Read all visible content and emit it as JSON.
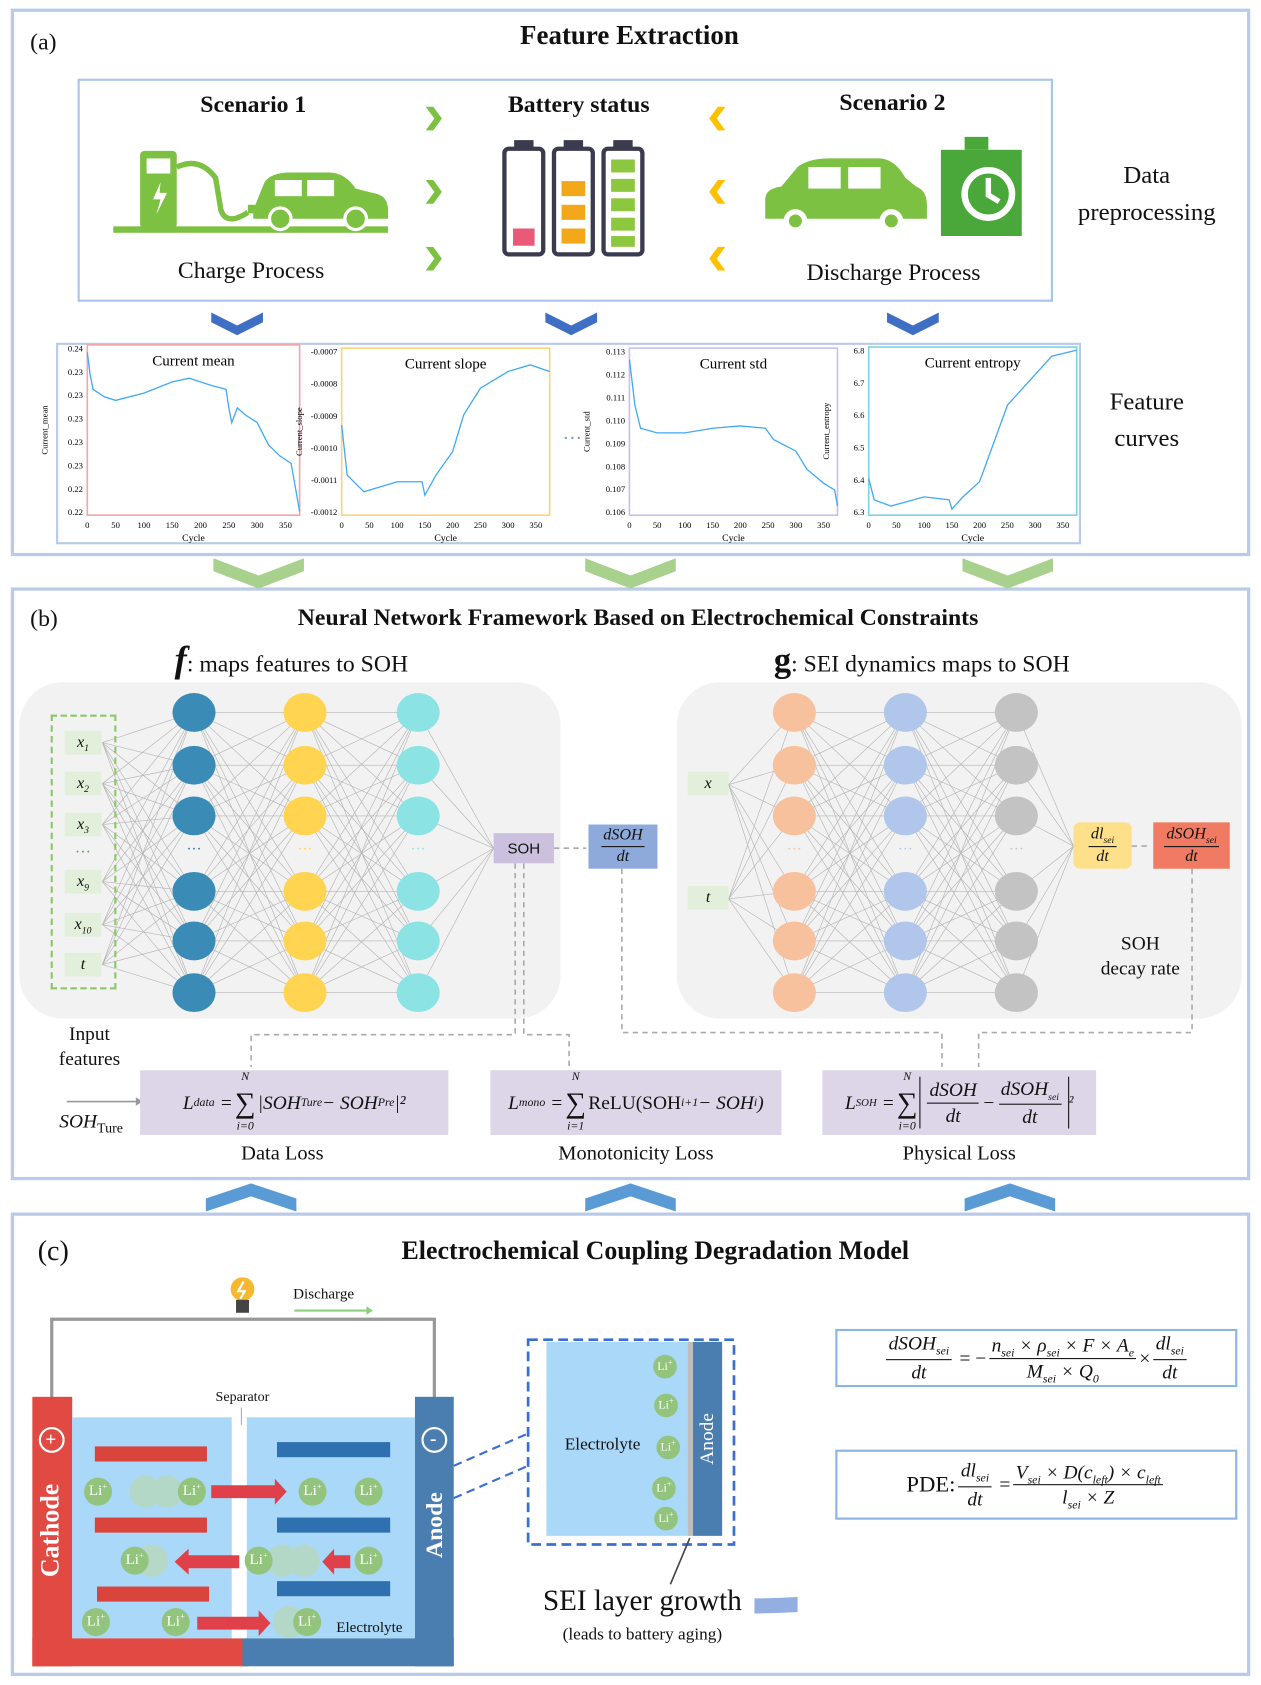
{
  "panel_a": {
    "label": "(a)",
    "title": "Feature Extraction",
    "scenario1": {
      "title": "Scenario 1",
      "caption": "Charge Process",
      "icon": "ev-charging-station-icon"
    },
    "battery": {
      "title": "Battery status",
      "icon": "battery-levels-icon"
    },
    "scenario2": {
      "title": "Scenario 2",
      "caption": "Discharge Process",
      "icon": "car-battery-discharge-icon"
    },
    "side_label_1": [
      "Data",
      "preprocessing"
    ],
    "side_label_2": [
      "Feature",
      "curves"
    ],
    "ellipsis": "···"
  },
  "chart_data": [
    {
      "type": "line",
      "title": "Current mean",
      "xlabel": "Cycle",
      "ylabel": "Current_mean",
      "xlim": [
        0,
        375
      ],
      "ylim": [
        0.2175,
        0.2405
      ],
      "xticks": [
        0,
        50,
        100,
        150,
        200,
        250,
        300,
        350
      ],
      "ytick_labels": [
        "0.24",
        "0.23",
        "0.23",
        "0.23",
        "0.23",
        "0.23",
        "0.22",
        "0.22"
      ],
      "frame_color": "#f4a6a6",
      "x": [
        0,
        5,
        10,
        30,
        50,
        100,
        150,
        180,
        220,
        245,
        250,
        255,
        265,
        280,
        300,
        320,
        340,
        360,
        375
      ],
      "y": [
        0.2395,
        0.2365,
        0.2345,
        0.2335,
        0.233,
        0.234,
        0.2355,
        0.236,
        0.235,
        0.2345,
        0.232,
        0.23,
        0.232,
        0.231,
        0.23,
        0.227,
        0.2255,
        0.2245,
        0.218
      ]
    },
    {
      "type": "line",
      "title": "Current slope",
      "xlabel": "Cycle",
      "ylabel": "Current_slope",
      "xlim": [
        0,
        375
      ],
      "ylim": [
        -0.0012,
        -0.0007
      ],
      "xticks": [
        0,
        50,
        100,
        150,
        200,
        250,
        300,
        350
      ],
      "ytick_labels": [
        "-0.0007",
        "-0.0008",
        "-0.0009",
        "-0.0010",
        "-0.0011",
        "-0.0012"
      ],
      "frame_color": "#ffd27a",
      "x": [
        0,
        10,
        40,
        100,
        145,
        150,
        170,
        200,
        220,
        250,
        300,
        340,
        375
      ],
      "y": [
        -0.00093,
        -0.00108,
        -0.00113,
        -0.0011,
        -0.0011,
        -0.00114,
        -0.00108,
        -0.00101,
        -0.0009,
        -0.00082,
        -0.00077,
        -0.00075,
        -0.00077
      ]
    },
    {
      "type": "line",
      "title": "Current std",
      "xlabel": "Cycle",
      "ylabel": "Current_std",
      "xlim": [
        0,
        375
      ],
      "ylim": [
        0.1057,
        0.113
      ],
      "xticks": [
        0,
        50,
        100,
        150,
        200,
        250,
        300,
        350
      ],
      "ytick_labels": [
        "0.113",
        "0.112",
        "0.111",
        "0.110",
        "0.109",
        "0.108",
        "0.107",
        "0.106"
      ],
      "frame_color": "#c9bfee",
      "x": [
        0,
        10,
        20,
        50,
        100,
        150,
        200,
        245,
        260,
        300,
        320,
        350,
        370,
        375
      ],
      "y": [
        0.1125,
        0.1105,
        0.1095,
        0.1093,
        0.1093,
        0.1095,
        0.1096,
        0.1095,
        0.109,
        0.1085,
        0.1077,
        0.1071,
        0.1068,
        0.1061
      ]
    },
    {
      "type": "line",
      "title": "Current entropy",
      "xlabel": "Cycle",
      "ylabel": "Current_entropy",
      "xlim": [
        0,
        375
      ],
      "ylim": [
        6.28,
        6.83
      ],
      "xticks": [
        0,
        50,
        100,
        150,
        200,
        250,
        300,
        350
      ],
      "ytick_labels": [
        "6.8",
        "6.7",
        "6.6",
        "6.5",
        "6.4",
        "6.3"
      ],
      "frame_color": "#7fd3e0",
      "x": [
        0,
        10,
        40,
        100,
        145,
        150,
        170,
        200,
        230,
        250,
        300,
        330,
        375
      ],
      "y": [
        6.4,
        6.33,
        6.31,
        6.34,
        6.33,
        6.3,
        6.34,
        6.39,
        6.54,
        6.64,
        6.74,
        6.8,
        6.82
      ]
    }
  ],
  "panel_b": {
    "label": "(b)",
    "title": "Neural Network Framework Based on Electrochemical Constraints",
    "f_symbol": "f",
    "f_caption": ":  maps features to SOH",
    "g_symbol": "g",
    "g_caption": ":  SEI dynamics maps to SOH",
    "inputs": [
      "x1",
      "x2",
      "x3",
      "···",
      "x9",
      "x10",
      "t"
    ],
    "input_subs": [
      "1",
      "2",
      "3",
      "",
      "9",
      "10",
      ""
    ],
    "input_caption": [
      "Input",
      "features"
    ],
    "soh_node": "SOH",
    "dsoh": {
      "num": "dSOH",
      "den": "dt"
    },
    "g_inputs": [
      "x",
      "t"
    ],
    "dl_sei": {
      "num": "dl",
      "sub": "sei",
      "den": "dt"
    },
    "dsoh_sei": {
      "num": "dSOH",
      "sub": "sei",
      "den": "dt"
    },
    "decay_caption": [
      "SOH",
      "decay rate"
    ],
    "soh_true": {
      "base": "SOH",
      "sub": "Ture"
    },
    "losses": [
      {
        "name": "Data Loss",
        "lhs": "L",
        "lhs_sub": "data",
        "sum_top": "N",
        "sum_bot": "i=0",
        "body": "|SOH",
        "sub1": "Ture",
        "mid": " − SOH",
        "sub2": "Pre",
        "tail": "|²"
      },
      {
        "name": "Monotonicity Loss",
        "lhs": "L",
        "lhs_sub": "mono",
        "sum_top": "N",
        "sum_bot": "i=1",
        "body": "ReLU(SOH",
        "sup1": "i+1",
        "mid": " − SOH",
        "sup2": "i",
        "tail": ")"
      },
      {
        "name": "Physical Loss",
        "lhs": "L",
        "lhs_sub": "SOH",
        "sum_top": "N",
        "sum_bot": "i=0",
        "f1n": "dSOH",
        "f1d": "dt",
        "f2n": "dSOH",
        "f2sub": "sei",
        "f2d": "dt",
        "tail": "²"
      }
    ],
    "colors": {
      "f_layers": [
        "#3a8cb6",
        "#ffd450",
        "#8ce3e3"
      ],
      "g_layers": [
        "#f8c19e",
        "#b0c6ea",
        "#c3c3c3"
      ],
      "input_bg": "#e2efda",
      "loss_bg": "#dcd6e8",
      "soh_bg": "#cbc1de",
      "dsoh_bg": "#8eaadb",
      "dl_bg": "#ffe08a",
      "dsohsei_bg": "#f07a62"
    }
  },
  "panel_c": {
    "label": "(c)",
    "title": "Electrochemical Coupling Degradation Model",
    "discharge": "Discharge",
    "separator": "Separator",
    "cathode": "Cathode",
    "anode": "Anode",
    "plus": "+",
    "minus": "-",
    "electrolyte": "Electrolyte",
    "ion": "Li",
    "ion_sup": "+",
    "zoom_electrolyte": "Electrolyte",
    "zoom_anode": "Anode",
    "sei_title": "SEI layer growth",
    "sei_note": "(leads to battery aging)",
    "eq1": {
      "lhs_num": "dSOH",
      "lhs_sub": "sei",
      "lhs_den": "dt",
      "rhs_num": "n_sei × ρ_sei × F × A_e",
      "rhs_den": "M_sei × Q_0",
      "tail_num": "dl",
      "tail_sub": "sei",
      "tail_den": "dt"
    },
    "eq2": {
      "prefix": "PDE:",
      "lhs_num": "dl",
      "lhs_sub": "sei",
      "lhs_den": "dt",
      "rhs_num": "V_sei × D(c_left) × c_left",
      "rhs_den": "l_sei × Z"
    }
  }
}
